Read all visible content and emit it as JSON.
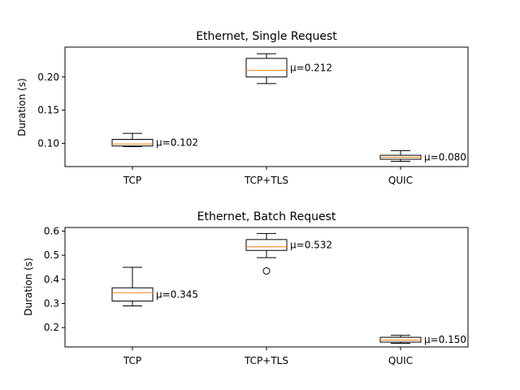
{
  "colors": {
    "box": "#000000",
    "median": "#ff7f0e",
    "background": "#ffffff"
  },
  "chart_data": [
    {
      "type": "box",
      "title": "Ethernet, Single Request",
      "ylabel": "Duration (s)",
      "xlabel": "",
      "ylim": [
        0.065,
        0.245
      ],
      "yticks": [
        0.1,
        0.15,
        0.2
      ],
      "ytick_labels": [
        "0.10",
        "0.15",
        "0.20"
      ],
      "categories": [
        "TCP",
        "TCP+TLS",
        "QUIC"
      ],
      "boxes": [
        {
          "category": "TCP",
          "whisker_low": 0.095,
          "q1": 0.096,
          "median": 0.099,
          "q3": 0.106,
          "whisker_high": 0.115,
          "outliers": [],
          "mean_label": "μ=0.102"
        },
        {
          "category": "TCP+TLS",
          "whisker_low": 0.19,
          "q1": 0.2,
          "median": 0.21,
          "q3": 0.228,
          "whisker_high": 0.235,
          "outliers": [],
          "mean_label": "μ=0.212"
        },
        {
          "category": "QUIC",
          "whisker_low": 0.073,
          "q1": 0.076,
          "median": 0.079,
          "q3": 0.082,
          "whisker_high": 0.089,
          "outliers": [],
          "mean_label": "μ=0.080"
        }
      ]
    },
    {
      "type": "box",
      "title": "Ethernet, Batch Request",
      "ylabel": "Duration (s)",
      "xlabel": "",
      "ylim": [
        0.12,
        0.615
      ],
      "yticks": [
        0.2,
        0.3,
        0.4,
        0.5,
        0.6
      ],
      "ytick_labels": [
        "0.2",
        "0.3",
        "0.4",
        "0.5",
        "0.6"
      ],
      "categories": [
        "TCP",
        "TCP+TLS",
        "QUIC"
      ],
      "boxes": [
        {
          "category": "TCP",
          "whisker_low": 0.29,
          "q1": 0.31,
          "median": 0.345,
          "q3": 0.365,
          "whisker_high": 0.45,
          "outliers": [],
          "mean_label": "μ=0.345"
        },
        {
          "category": "TCP+TLS",
          "whisker_low": 0.49,
          "q1": 0.52,
          "median": 0.535,
          "q3": 0.565,
          "whisker_high": 0.59,
          "outliers": [
            0.435
          ],
          "mean_label": "μ=0.532"
        },
        {
          "category": "QUIC",
          "whisker_low": 0.135,
          "q1": 0.14,
          "median": 0.148,
          "q3": 0.16,
          "whisker_high": 0.168,
          "outliers": [],
          "mean_label": "μ=0.150"
        }
      ]
    }
  ]
}
